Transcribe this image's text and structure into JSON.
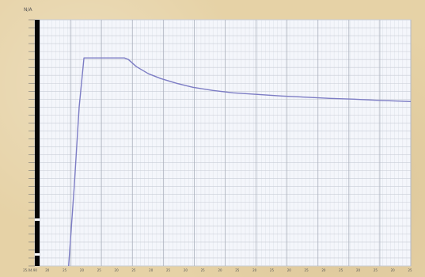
{
  "chart_data": {
    "type": "line",
    "title": "",
    "xlabel": "",
    "ylabel": "",
    "y_unit": "N/A",
    "xlim": [
      0,
      46
    ],
    "ylim": [
      0,
      31
    ],
    "grid": true,
    "legend": "none",
    "x_ticks": [
      "25.04.90",
      "20",
      "25",
      "20",
      "25",
      "20",
      "25",
      "20",
      "25",
      "20",
      "25",
      "20",
      "25",
      "20",
      "25",
      "20",
      "25",
      "20",
      "25",
      "20",
      "25",
      "20",
      "25"
    ],
    "y_ticks": [],
    "series": [
      {
        "color": "#7c7cc4",
        "x": [
          3.6,
          4.3,
          4.9,
          5.5,
          6.5,
          8.5,
          10.5,
          11.0,
          12.0,
          13.5,
          15,
          17,
          19,
          21.5,
          24,
          27,
          30,
          33,
          36,
          39,
          42,
          46
        ],
        "y": [
          0,
          10,
          20,
          26.2,
          26.2,
          26.2,
          26.2,
          26.0,
          25.1,
          24.2,
          23.6,
          23.0,
          22.5,
          22.1,
          21.8,
          21.6,
          21.4,
          21.25,
          21.1,
          21.0,
          20.85,
          20.7
        ]
      }
    ]
  }
}
